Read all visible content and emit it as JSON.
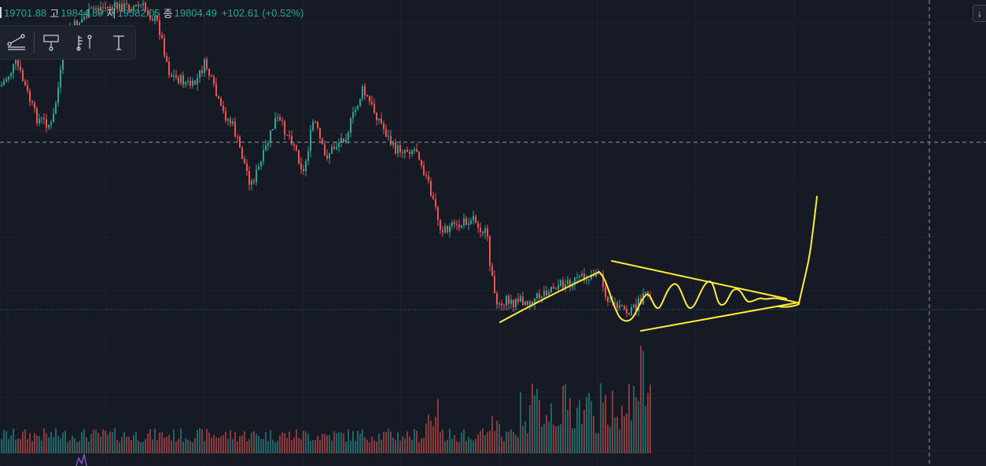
{
  "ohlc_legend": {
    "open": "19701.88",
    "high_label": "고",
    "high": "19844.89",
    "low_label": "저",
    "low": "19582.05",
    "close_label": "종",
    "close": "19804.49",
    "change": "+102.61",
    "change_pct": "(+0.52%)"
  },
  "drawing_toolbar": {
    "tools": [
      "trend-line-icon",
      "long-position-icon",
      "fib-retracement-icon",
      "text-icon"
    ]
  },
  "scroll_button": "↓",
  "colors": {
    "background": "#161a25",
    "grid": "#1f2330",
    "up": "#26a69a",
    "down": "#ef5350",
    "drawing": "#ffeb3b",
    "crosshair": "#9598a1",
    "price_line": "#26a69a"
  },
  "chart_data": {
    "type": "candlestick",
    "crosshair": true,
    "grid": true,
    "annotations": [
      "ascending trend line",
      "symmetrical triangle",
      "wave projection",
      "breakout arrow"
    ]
  }
}
